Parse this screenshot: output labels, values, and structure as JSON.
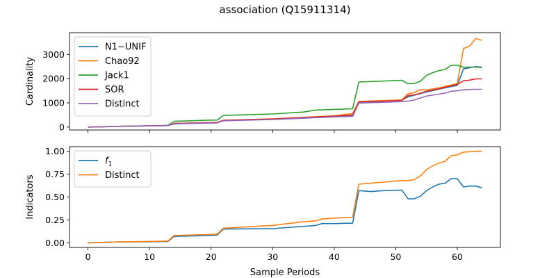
{
  "title": "association (Q15911314)",
  "xlabel": "Sample Periods",
  "chart_data": [
    {
      "type": "line",
      "ylabel": "Cardinality",
      "xlim": [
        -3,
        67
      ],
      "ylim": [
        -120,
        3900
      ],
      "xticks": [
        0,
        10,
        20,
        30,
        40,
        50,
        60
      ],
      "yticks": [
        0,
        1000,
        2000,
        3000
      ],
      "legend": "top-left",
      "series": [
        {
          "name": "N1−UNIF",
          "color": "#1f77b4",
          "x": [
            0,
            5,
            10,
            13,
            14,
            19,
            21,
            22,
            30,
            40,
            43,
            44,
            51,
            52,
            55,
            58,
            60,
            61,
            62,
            63,
            64
          ],
          "y": [
            0,
            30,
            50,
            60,
            150,
            180,
            190,
            270,
            330,
            440,
            480,
            1020,
            1120,
            1250,
            1450,
            1620,
            1720,
            2400,
            2450,
            2500,
            2470
          ]
        },
        {
          "name": "Chao92",
          "color": "#ff7f0e",
          "x": [
            0,
            5,
            10,
            13,
            14,
            19,
            21,
            22,
            30,
            40,
            43,
            44,
            51,
            52,
            53,
            54,
            55,
            57,
            60,
            61,
            62,
            63,
            64
          ],
          "y": [
            0,
            30,
            50,
            60,
            150,
            180,
            190,
            280,
            340,
            470,
            560,
            1060,
            1120,
            1380,
            1420,
            1550,
            1530,
            1620,
            1800,
            3250,
            3350,
            3660,
            3580
          ]
        },
        {
          "name": "Jack1",
          "color": "#2ca02c",
          "x": [
            0,
            5,
            10,
            13,
            14,
            19,
            21,
            22,
            30,
            35,
            37,
            40,
            43,
            44,
            51,
            52,
            53,
            54,
            55,
            56,
            57,
            58,
            59,
            60,
            61,
            62,
            63,
            64
          ],
          "y": [
            0,
            30,
            50,
            70,
            240,
            280,
            290,
            480,
            540,
            620,
            700,
            730,
            760,
            1860,
            1930,
            1790,
            1800,
            1890,
            2130,
            2250,
            2330,
            2380,
            2550,
            2560,
            2470,
            2480,
            2480,
            2450
          ]
        },
        {
          "name": "SOR",
          "color": "#d62728",
          "x": [
            0,
            5,
            10,
            13,
            14,
            19,
            21,
            22,
            30,
            40,
            43,
            44,
            51,
            52,
            53,
            54,
            55,
            57,
            60,
            61,
            62,
            63,
            64
          ],
          "y": [
            0,
            30,
            50,
            60,
            150,
            180,
            190,
            280,
            330,
            450,
            500,
            1040,
            1100,
            1300,
            1330,
            1400,
            1480,
            1580,
            1760,
            1910,
            1940,
            1990,
            1990
          ]
        },
        {
          "name": "Distinct",
          "color": "#9467bd",
          "x": [
            0,
            5,
            10,
            13,
            14,
            19,
            21,
            22,
            30,
            40,
            43,
            44,
            51,
            52,
            53,
            54,
            55,
            57,
            58,
            59,
            60,
            61,
            62,
            63,
            64
          ],
          "y": [
            0,
            30,
            50,
            60,
            130,
            160,
            170,
            260,
            310,
            420,
            440,
            990,
            1050,
            1070,
            1120,
            1200,
            1280,
            1360,
            1400,
            1480,
            1500,
            1540,
            1550,
            1560,
            1560
          ]
        }
      ]
    },
    {
      "type": "line",
      "ylabel": "Indicators",
      "xlim": [
        -3,
        67
      ],
      "ylim": [
        -0.05,
        1.05
      ],
      "xticks": [
        0,
        10,
        20,
        30,
        40,
        50,
        60
      ],
      "yticks": [
        0.0,
        0.25,
        0.5,
        0.75,
        1.0
      ],
      "ytick_labels": [
        "0.00",
        "0.25",
        "0.50",
        "0.75",
        "1.00"
      ],
      "legend": "top-left",
      "series": [
        {
          "name": "f1",
          "color": "#1f77b4",
          "x": [
            0,
            5,
            10,
            13,
            14,
            19,
            21,
            22,
            30,
            35,
            37,
            38,
            40,
            43,
            44,
            46,
            48,
            51,
            52,
            53,
            54,
            55,
            56,
            57,
            58,
            59,
            60,
            61,
            62,
            63,
            64
          ],
          "y": [
            0,
            0.01,
            0.012,
            0.015,
            0.07,
            0.08,
            0.085,
            0.15,
            0.155,
            0.18,
            0.19,
            0.21,
            0.21,
            0.215,
            0.57,
            0.56,
            0.57,
            0.575,
            0.48,
            0.48,
            0.51,
            0.57,
            0.61,
            0.64,
            0.65,
            0.7,
            0.7,
            0.61,
            0.62,
            0.62,
            0.6
          ]
        },
        {
          "name": "Distinct",
          "color": "#ff7f0e",
          "x": [
            0,
            5,
            10,
            13,
            14,
            19,
            21,
            22,
            30,
            35,
            37,
            38,
            40,
            43,
            44,
            51,
            52,
            53,
            54,
            55,
            56,
            57,
            58,
            59,
            60,
            61,
            62,
            63,
            64
          ],
          "y": [
            0,
            0.01,
            0.015,
            0.02,
            0.08,
            0.09,
            0.095,
            0.16,
            0.19,
            0.23,
            0.24,
            0.26,
            0.27,
            0.28,
            0.64,
            0.68,
            0.68,
            0.69,
            0.73,
            0.8,
            0.84,
            0.87,
            0.89,
            0.95,
            0.96,
            0.99,
            0.995,
            1.0,
            1.0
          ]
        }
      ]
    }
  ]
}
